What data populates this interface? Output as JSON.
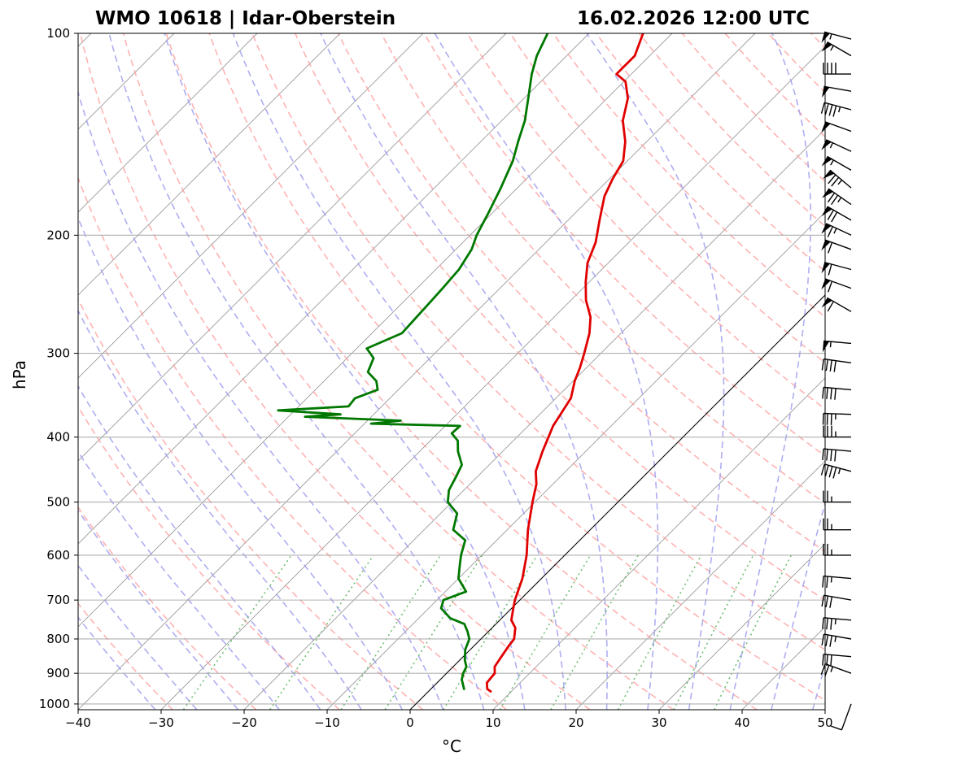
{
  "chart_data": {
    "type": "skew-t",
    "title_left": "WMO 10618 | Idar-Oberstein",
    "title_right": "16.02.2026 12:00 UTC",
    "xlabel": "°C",
    "ylabel": "hPa",
    "xlim": [
      -40,
      50
    ],
    "ylim_hpa": [
      1020,
      100
    ],
    "x_ticks": [
      -40,
      -30,
      -20,
      -10,
      0,
      10,
      20,
      30,
      40,
      50
    ],
    "x_tick_labels": [
      "−40",
      "−30",
      "−20",
      "−10",
      "0",
      "10",
      "20",
      "30",
      "40",
      "50"
    ],
    "y_ticks": [
      1000,
      900,
      800,
      700,
      600,
      500,
      400,
      300,
      200,
      100
    ],
    "y_tick_labels": [
      "1000",
      "900",
      "800",
      "700",
      "600",
      "500",
      "400",
      "300",
      "200",
      "100"
    ],
    "reference_lines": {
      "isotherms": "grey solid skewed",
      "dry_adiabats": "red dashed",
      "moist_adiabats": "blue dashed",
      "mixing_ratio": "green dotted",
      "zero_isotherm": "black solid"
    },
    "series": [
      {
        "name": "Temperature",
        "color": "#e00000",
        "points": [
          [
            958,
            7.5
          ],
          [
            950,
            6.8
          ],
          [
            930,
            6.0
          ],
          [
            900,
            5.8
          ],
          [
            880,
            5.0
          ],
          [
            850,
            4.6
          ],
          [
            820,
            4.2
          ],
          [
            800,
            4.0
          ],
          [
            770,
            2.8
          ],
          [
            750,
            1.4
          ],
          [
            720,
            0.2
          ],
          [
            700,
            -0.6
          ],
          [
            650,
            -2.3
          ],
          [
            600,
            -4.6
          ],
          [
            550,
            -7.5
          ],
          [
            500,
            -10.3
          ],
          [
            470,
            -12.0
          ],
          [
            450,
            -13.6
          ],
          [
            420,
            -15.2
          ],
          [
            400,
            -16.2
          ],
          [
            385,
            -17.0
          ],
          [
            370,
            -17.5
          ],
          [
            350,
            -18.2
          ],
          [
            330,
            -19.8
          ],
          [
            315,
            -20.8
          ],
          [
            300,
            -22.0
          ],
          [
            280,
            -23.8
          ],
          [
            265,
            -25.6
          ],
          [
            250,
            -28.2
          ],
          [
            235,
            -30.4
          ],
          [
            220,
            -32.5
          ],
          [
            205,
            -34.0
          ],
          [
            190,
            -36.2
          ],
          [
            175,
            -38.5
          ],
          [
            165,
            -39.6
          ],
          [
            155,
            -40.5
          ],
          [
            145,
            -42.6
          ],
          [
            135,
            -45.4
          ],
          [
            125,
            -47.5
          ],
          [
            118,
            -49.8
          ],
          [
            115,
            -51.8
          ],
          [
            108,
            -51.8
          ],
          [
            100,
            -53.5
          ]
        ]
      },
      {
        "name": "Dewpoint",
        "color": "#007800",
        "points": [
          [
            950,
            4.0
          ],
          [
            920,
            2.6
          ],
          [
            900,
            2.0
          ],
          [
            880,
            1.6
          ],
          [
            860,
            0.6
          ],
          [
            830,
            -0.6
          ],
          [
            800,
            -1.4
          ],
          [
            780,
            -2.5
          ],
          [
            760,
            -3.8
          ],
          [
            745,
            -6.2
          ],
          [
            720,
            -8.5
          ],
          [
            700,
            -9.2
          ],
          [
            680,
            -7.5
          ],
          [
            650,
            -10.0
          ],
          [
            620,
            -11.5
          ],
          [
            600,
            -12.5
          ],
          [
            570,
            -13.8
          ],
          [
            550,
            -16.5
          ],
          [
            520,
            -18.0
          ],
          [
            500,
            -20.5
          ],
          [
            480,
            -21.8
          ],
          [
            460,
            -22.5
          ],
          [
            440,
            -23.3
          ],
          [
            420,
            -25.4
          ],
          [
            405,
            -26.7
          ],
          [
            395,
            -28.3
          ],
          [
            385,
            -28.2
          ],
          [
            382,
            -39.2
          ],
          [
            378,
            -36.0
          ],
          [
            373,
            -48.0
          ],
          [
            370,
            -44.0
          ],
          [
            365,
            -52.0
          ],
          [
            360,
            -44.0
          ],
          [
            350,
            -44.2
          ],
          [
            340,
            -42.5
          ],
          [
            330,
            -43.7
          ],
          [
            320,
            -45.8
          ],
          [
            305,
            -46.8
          ],
          [
            295,
            -48.8
          ],
          [
            280,
            -46.4
          ],
          [
            255,
            -46.7
          ],
          [
            240,
            -46.9
          ],
          [
            225,
            -47.2
          ],
          [
            210,
            -48.1
          ],
          [
            200,
            -49.2
          ],
          [
            185,
            -50.5
          ],
          [
            170,
            -52.0
          ],
          [
            155,
            -53.8
          ],
          [
            145,
            -55.5
          ],
          [
            135,
            -57.2
          ],
          [
            125,
            -59.5
          ],
          [
            115,
            -62.0
          ],
          [
            108,
            -63.6
          ],
          [
            100,
            -65.0
          ]
        ]
      }
    ],
    "wind_barbs": {
      "note": "Wind barbs along the right edge, pressure levels in hPa, speed in knots, direction in degrees",
      "barbs": [
        {
          "p": 1000,
          "speed_kt": 10,
          "dir_deg": 200
        },
        {
          "p": 900,
          "speed_kt": 25,
          "dir_deg": 290
        },
        {
          "p": 850,
          "speed_kt": 30,
          "dir_deg": 275
        },
        {
          "p": 800,
          "speed_kt": 35,
          "dir_deg": 280
        },
        {
          "p": 750,
          "speed_kt": 35,
          "dir_deg": 275
        },
        {
          "p": 700,
          "speed_kt": 30,
          "dir_deg": 280
        },
        {
          "p": 650,
          "speed_kt": 25,
          "dir_deg": 275
        },
        {
          "p": 600,
          "speed_kt": 25,
          "dir_deg": 270
        },
        {
          "p": 550,
          "speed_kt": 25,
          "dir_deg": 270
        },
        {
          "p": 500,
          "speed_kt": 25,
          "dir_deg": 270
        },
        {
          "p": 450,
          "speed_kt": 45,
          "dir_deg": 285
        },
        {
          "p": 420,
          "speed_kt": 40,
          "dir_deg": 275
        },
        {
          "p": 400,
          "speed_kt": 35,
          "dir_deg": 270
        },
        {
          "p": 370,
          "speed_kt": 35,
          "dir_deg": 272
        },
        {
          "p": 340,
          "speed_kt": 40,
          "dir_deg": 275
        },
        {
          "p": 310,
          "speed_kt": 40,
          "dir_deg": 278
        },
        {
          "p": 290,
          "speed_kt": 55,
          "dir_deg": 275
        },
        {
          "p": 260,
          "speed_kt": 60,
          "dir_deg": 300
        },
        {
          "p": 240,
          "speed_kt": 60,
          "dir_deg": 290
        },
        {
          "p": 225,
          "speed_kt": 60,
          "dir_deg": 285
        },
        {
          "p": 210,
          "speed_kt": 60,
          "dir_deg": 290
        },
        {
          "p": 200,
          "speed_kt": 65,
          "dir_deg": 295
        },
        {
          "p": 190,
          "speed_kt": 70,
          "dir_deg": 300
        },
        {
          "p": 180,
          "speed_kt": 75,
          "dir_deg": 305
        },
        {
          "p": 170,
          "speed_kt": 75,
          "dir_deg": 310
        },
        {
          "p": 160,
          "speed_kt": 55,
          "dir_deg": 300
        },
        {
          "p": 150,
          "speed_kt": 55,
          "dir_deg": 295
        },
        {
          "p": 140,
          "speed_kt": 50,
          "dir_deg": 290
        },
        {
          "p": 130,
          "speed_kt": 45,
          "dir_deg": 285
        },
        {
          "p": 122,
          "speed_kt": 50,
          "dir_deg": 280
        },
        {
          "p": 115,
          "speed_kt": 40,
          "dir_deg": 270
        },
        {
          "p": 108,
          "speed_kt": 55,
          "dir_deg": 300
        },
        {
          "p": 102,
          "speed_kt": 55,
          "dir_deg": 285
        }
      ]
    }
  }
}
